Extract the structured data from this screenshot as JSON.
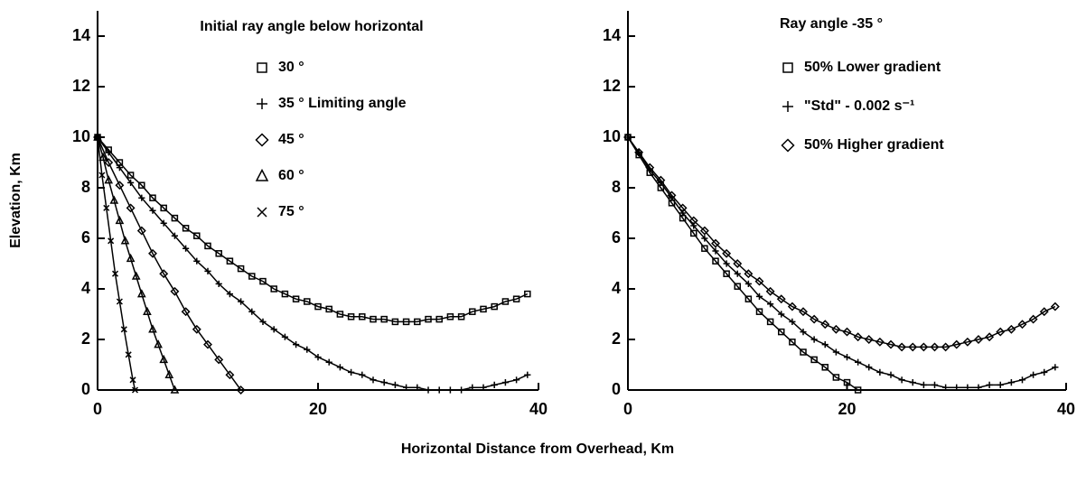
{
  "figure": {
    "xlabel": "Horizontal Distance from Overhead, Km",
    "ylabel": "Elevation, Km"
  },
  "chart_data": [
    {
      "type": "line",
      "title": "Initial  ray angle below horizontal",
      "xlim": [
        0,
        40
      ],
      "ylim": [
        0,
        15
      ],
      "xticks": [
        0,
        20,
        40
      ],
      "yticks": [
        0,
        2,
        4,
        6,
        8,
        10,
        12,
        14
      ],
      "series": [
        {
          "name": "30 °",
          "marker": "square",
          "color": "#000000",
          "x": [
            0,
            1,
            2,
            3,
            4,
            5,
            6,
            7,
            8,
            9,
            10,
            11,
            12,
            13,
            14,
            15,
            16,
            17,
            18,
            19,
            20,
            21,
            22,
            23,
            24,
            25,
            26,
            27,
            28,
            29,
            30,
            31,
            32,
            33,
            34,
            35,
            36,
            37,
            38,
            39
          ],
          "values": [
            10,
            9.5,
            9.0,
            8.5,
            8.1,
            7.6,
            7.2,
            6.8,
            6.4,
            6.1,
            5.7,
            5.4,
            5.1,
            4.8,
            4.5,
            4.3,
            4.0,
            3.8,
            3.6,
            3.5,
            3.3,
            3.2,
            3.0,
            2.9,
            2.9,
            2.8,
            2.8,
            2.7,
            2.7,
            2.7,
            2.8,
            2.8,
            2.9,
            2.9,
            3.1,
            3.2,
            3.3,
            3.5,
            3.6,
            3.8
          ]
        },
        {
          "name": "35 ° Limiting angle",
          "marker": "plus",
          "color": "#000000",
          "x": [
            0,
            1,
            2,
            3,
            4,
            5,
            6,
            7,
            8,
            9,
            10,
            11,
            12,
            13,
            14,
            15,
            16,
            17,
            18,
            19,
            20,
            21,
            22,
            23,
            24,
            25,
            26,
            27,
            28,
            29,
            30,
            31,
            32,
            33,
            34,
            35,
            36,
            37,
            38,
            39
          ],
          "values": [
            10,
            9.4,
            8.8,
            8.2,
            7.6,
            7.1,
            6.6,
            6.1,
            5.6,
            5.1,
            4.7,
            4.2,
            3.8,
            3.5,
            3.1,
            2.7,
            2.4,
            2.1,
            1.8,
            1.6,
            1.3,
            1.1,
            0.9,
            0.7,
            0.6,
            0.4,
            0.3,
            0.2,
            0.1,
            0.1,
            0,
            0,
            0,
            0,
            0.1,
            0.1,
            0.2,
            0.3,
            0.4,
            0.6
          ]
        },
        {
          "name": "45 °",
          "marker": "diamond",
          "color": "#000000",
          "x": [
            0,
            1,
            2,
            3,
            4,
            5,
            6,
            7,
            8,
            9,
            10,
            11,
            12,
            13
          ],
          "values": [
            10,
            9.0,
            8.1,
            7.2,
            6.3,
            5.4,
            4.6,
            3.9,
            3.1,
            2.4,
            1.8,
            1.2,
            0.6,
            0
          ]
        },
        {
          "name": "60 °",
          "marker": "triangle",
          "color": "#000000",
          "x": [
            0,
            0.5,
            1,
            1.5,
            2,
            2.5,
            3,
            3.5,
            4,
            4.5,
            5,
            5.5,
            6,
            6.5,
            7
          ],
          "values": [
            10,
            9.2,
            8.3,
            7.5,
            6.7,
            5.9,
            5.2,
            4.5,
            3.8,
            3.1,
            2.4,
            1.8,
            1.2,
            0.6,
            0
          ]
        },
        {
          "name": "75 °",
          "marker": "cross",
          "color": "#000000",
          "x": [
            0,
            0.4,
            0.8,
            1.2,
            1.6,
            2.0,
            2.4,
            2.8,
            3.2,
            3.4
          ],
          "values": [
            10,
            8.5,
            7.2,
            5.9,
            4.6,
            3.5,
            2.4,
            1.4,
            0.4,
            0
          ]
        }
      ]
    },
    {
      "type": "line",
      "title": "Ray angle -35 °",
      "xlim": [
        0,
        40
      ],
      "ylim": [
        0,
        15
      ],
      "xticks": [
        0,
        20,
        40
      ],
      "yticks": [
        0,
        2,
        4,
        6,
        8,
        10,
        12,
        14
      ],
      "series": [
        {
          "name": "50% Lower gradient",
          "marker": "square",
          "color": "#000000",
          "x": [
            0,
            1,
            2,
            3,
            4,
            5,
            6,
            7,
            8,
            9,
            10,
            11,
            12,
            13,
            14,
            15,
            16,
            17,
            18,
            19,
            20,
            21
          ],
          "values": [
            10,
            9.3,
            8.6,
            8.0,
            7.4,
            6.8,
            6.2,
            5.6,
            5.1,
            4.6,
            4.1,
            3.6,
            3.1,
            2.7,
            2.3,
            1.9,
            1.5,
            1.2,
            0.9,
            0.5,
            0.3,
            0
          ]
        },
        {
          "name": "\"Std\"  - 0.002 s⁻¹",
          "marker": "plus",
          "color": "#000000",
          "x": [
            0,
            1,
            2,
            3,
            4,
            5,
            6,
            7,
            8,
            9,
            10,
            11,
            12,
            13,
            14,
            15,
            16,
            17,
            18,
            19,
            20,
            21,
            22,
            23,
            24,
            25,
            26,
            27,
            28,
            29,
            30,
            31,
            32,
            33,
            34,
            35,
            36,
            37,
            38,
            39
          ],
          "values": [
            10,
            9.4,
            8.7,
            8.2,
            7.6,
            7.0,
            6.5,
            6.0,
            5.5,
            5.0,
            4.6,
            4.2,
            3.7,
            3.4,
            3.0,
            2.7,
            2.3,
            2.0,
            1.8,
            1.5,
            1.3,
            1.1,
            0.9,
            0.7,
            0.6,
            0.4,
            0.3,
            0.2,
            0.2,
            0.1,
            0.1,
            0.1,
            0.1,
            0.2,
            0.2,
            0.3,
            0.4,
            0.6,
            0.7,
            0.9
          ]
        },
        {
          "name": "50% Higher gradient",
          "marker": "diamond",
          "color": "#000000",
          "x": [
            0,
            1,
            2,
            3,
            4,
            5,
            6,
            7,
            8,
            9,
            10,
            11,
            12,
            13,
            14,
            15,
            16,
            17,
            18,
            19,
            20,
            21,
            22,
            23,
            24,
            25,
            26,
            27,
            28,
            29,
            30,
            31,
            32,
            33,
            34,
            35,
            36,
            37,
            38,
            39
          ],
          "values": [
            10,
            9.4,
            8.8,
            8.3,
            7.7,
            7.2,
            6.7,
            6.3,
            5.8,
            5.4,
            5.0,
            4.6,
            4.3,
            3.9,
            3.6,
            3.3,
            3.1,
            2.8,
            2.6,
            2.4,
            2.3,
            2.1,
            2.0,
            1.9,
            1.8,
            1.7,
            1.7,
            1.7,
            1.7,
            1.7,
            1.8,
            1.9,
            2.0,
            2.1,
            2.3,
            2.4,
            2.6,
            2.8,
            3.1,
            3.3
          ]
        }
      ]
    }
  ]
}
